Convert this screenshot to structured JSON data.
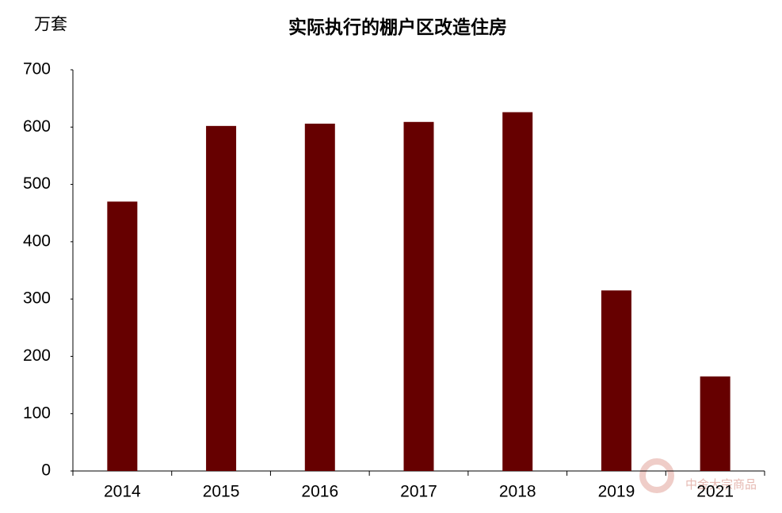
{
  "chart_data": {
    "type": "bar",
    "title": "实际执行的棚户区改造住房",
    "y_unit": "万套",
    "categories": [
      "2014",
      "2015",
      "2016",
      "2017",
      "2018",
      "2019",
      "2021"
    ],
    "values": [
      470,
      602,
      606,
      609,
      626,
      315,
      165
    ],
    "color": "#660000",
    "ylim": [
      0,
      700
    ],
    "yticks": [
      0,
      100,
      200,
      300,
      400,
      500,
      600,
      700
    ],
    "grid": false,
    "watermark": "中金大宗商品"
  }
}
